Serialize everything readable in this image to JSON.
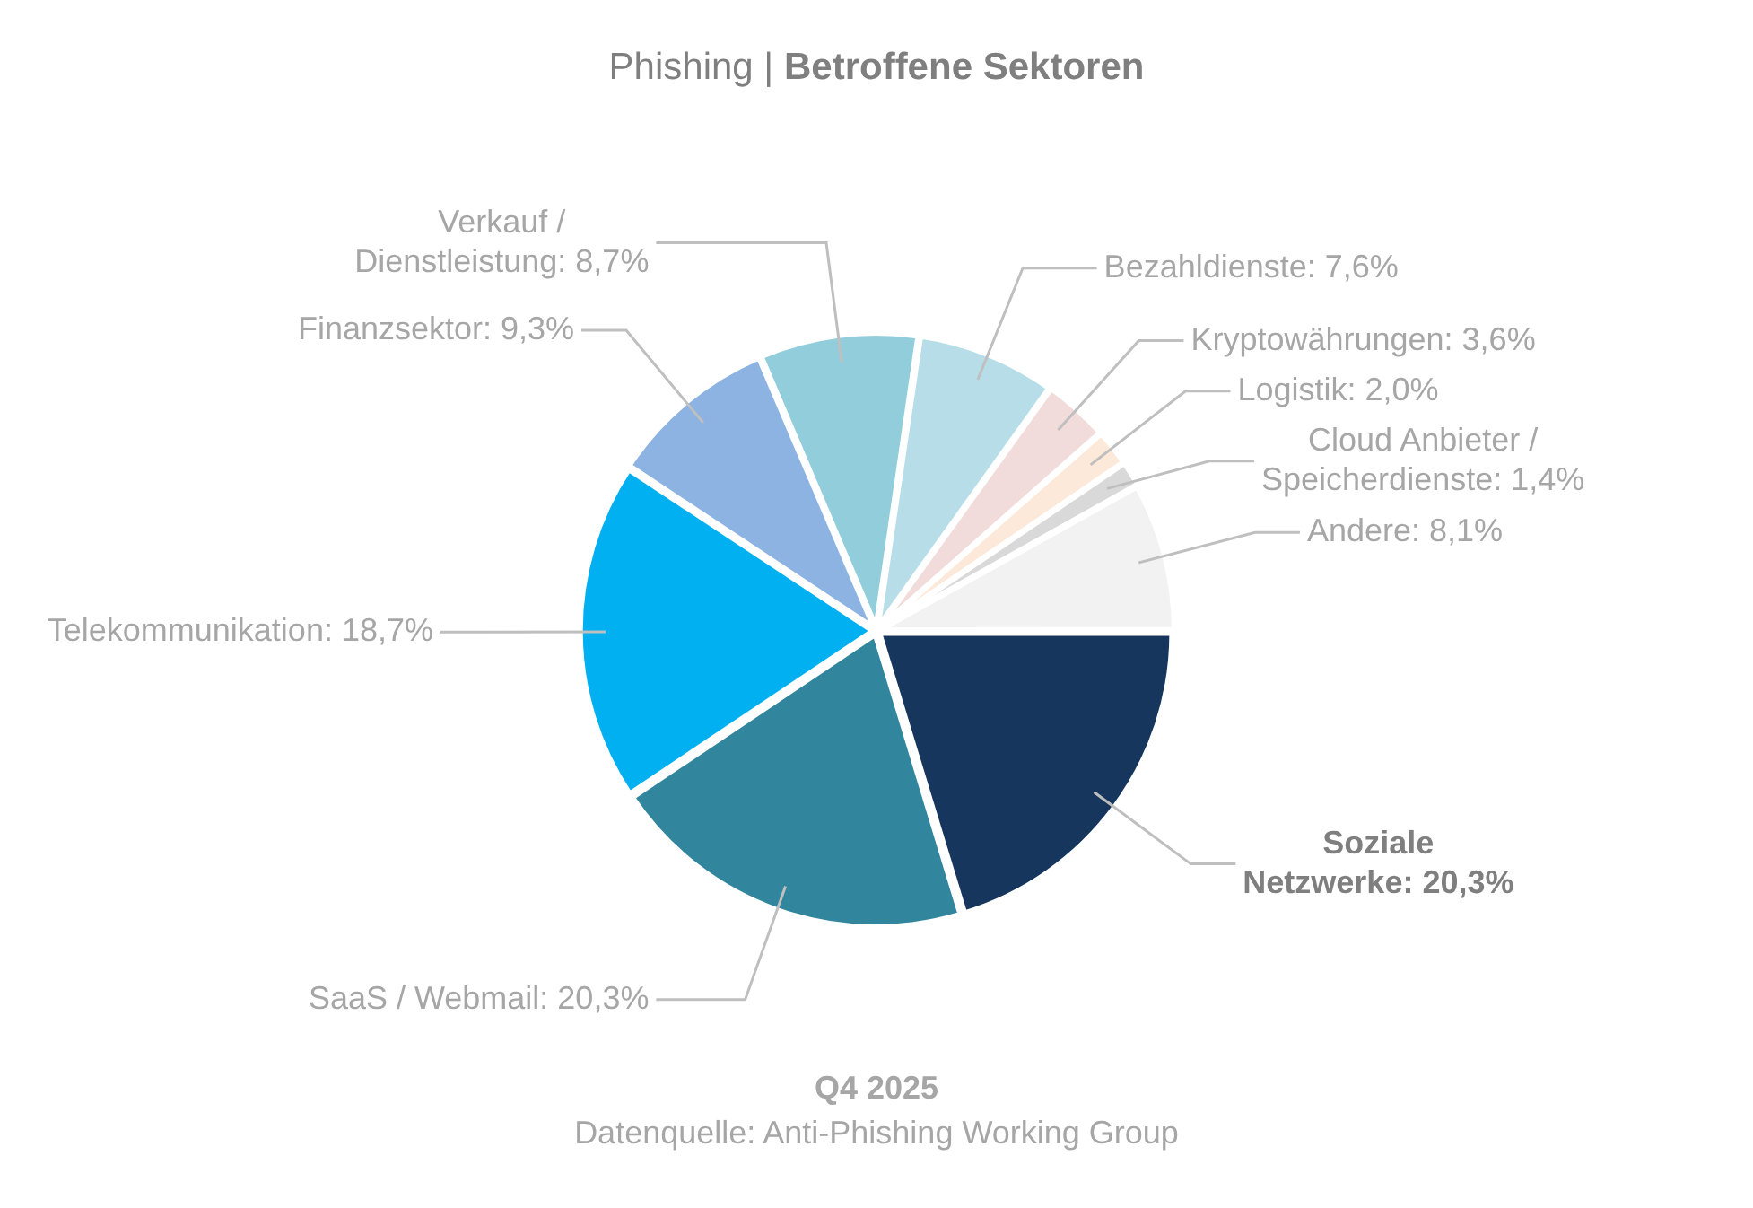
{
  "chart_data": {
    "type": "pie",
    "title": "Phishing | Betroffene Sektoren",
    "subtitle": "Q4 2025",
    "categories": [
      "Soziale Netzwerke",
      "SaaS / Webmail",
      "Telekommunikation",
      "Finanzsektor",
      "Verkauf / Dienstleistung",
      "Bezahldienste",
      "Kryptowährungen",
      "Logistik",
      "Cloud Anbieter / Speicherdienste",
      "Andere"
    ],
    "value_labels": [
      "20,3%",
      "20,3%",
      "18,7%",
      "9,3%",
      "8,7%",
      "7,6%",
      "3,6%",
      "2,0%",
      "1,4%",
      "8,1%"
    ],
    "values": [
      20.3,
      20.3,
      18.7,
      9.3,
      8.7,
      7.6,
      3.6,
      2.0,
      1.4,
      8.1
    ],
    "colors": [
      "#17365d",
      "#31859c",
      "#00b0f0",
      "#8db3e2",
      "#92cddc",
      "#b7dee8",
      "#f2dcdb",
      "#fde9d9",
      "#d9d9d9",
      "#f2f2f2"
    ],
    "legend": false,
    "annotations": [
      "Datenquelle: Anti-Phishing Working Group"
    ]
  }
}
